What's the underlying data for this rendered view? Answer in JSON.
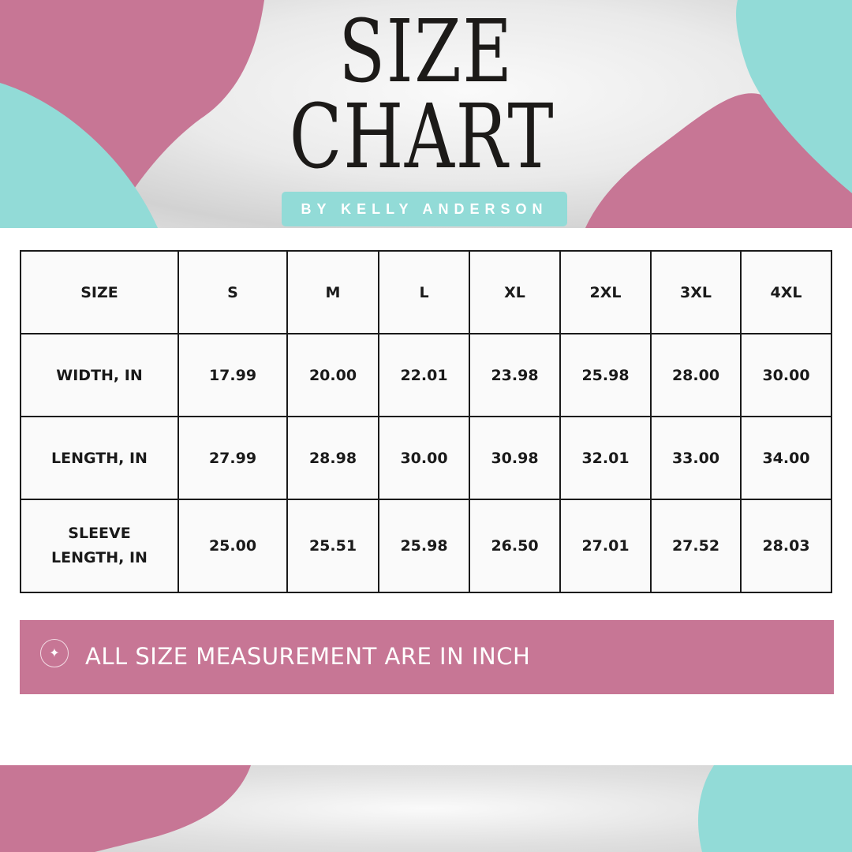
{
  "header": {
    "title_line1": "SIZE",
    "title_line2": "CHART",
    "byline": "BY KELLY ANDERSON"
  },
  "colors": {
    "pink": "#c77695",
    "teal": "#92dbd7",
    "text": "#1a1a1a"
  },
  "table": {
    "columns": [
      "SIZE",
      "S",
      "M",
      "L",
      "XL",
      "2XL",
      "3XL",
      "4XL"
    ],
    "rows": [
      {
        "label": "WIDTH, IN",
        "values": [
          "17.99",
          "20.00",
          "22.01",
          "23.98",
          "25.98",
          "28.00",
          "30.00"
        ]
      },
      {
        "label": "LENGTH, IN",
        "values": [
          "27.99",
          "28.98",
          "30.00",
          "30.98",
          "32.01",
          "33.00",
          "34.00"
        ]
      },
      {
        "label": "SLEEVE LENGTH, IN",
        "values": [
          "25.00",
          "25.51",
          "25.98",
          "26.50",
          "27.01",
          "27.52",
          "28.03"
        ]
      }
    ]
  },
  "note": {
    "icon": "sparkle-icon",
    "text": "ALL SIZE MEASUREMENT ARE IN INCH"
  }
}
